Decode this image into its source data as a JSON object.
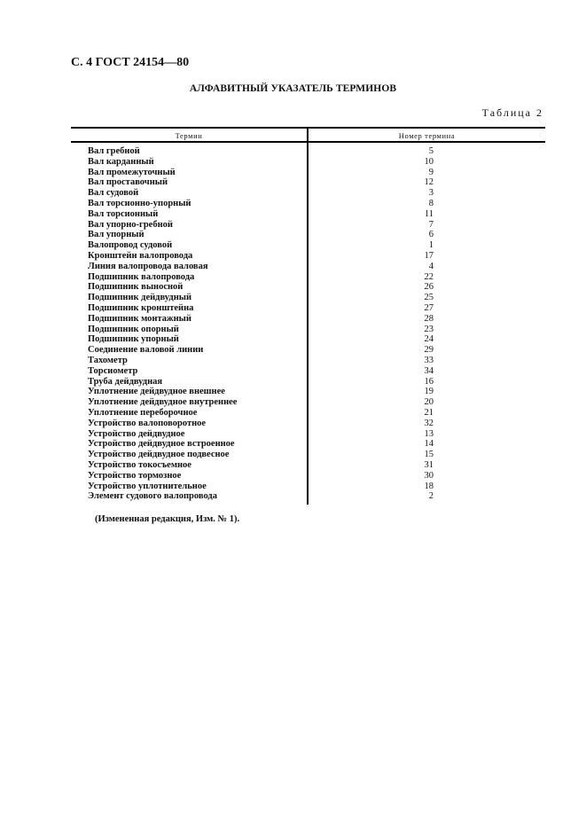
{
  "header": "С. 4 ГОСТ 24154—80",
  "title": "АЛФАВИТНЫЙ УКАЗАТЕЛЬ ТЕРМИНОВ",
  "table_label": "Таблица 2",
  "columns": [
    "Термин",
    "Номер термина"
  ],
  "rows": [
    [
      "Вал гребной",
      "5"
    ],
    [
      "Вал карданный",
      "10"
    ],
    [
      "Вал промежуточный",
      "9"
    ],
    [
      "Вал проставочный",
      "12"
    ],
    [
      "Вал судовой",
      "3"
    ],
    [
      "Вал торсионно-упорный",
      "8"
    ],
    [
      "Вал торсионный",
      "11"
    ],
    [
      "Вал упорно-гребной",
      "7"
    ],
    [
      "Вал упорный",
      "6"
    ],
    [
      "Валопровод судовой",
      "1"
    ],
    [
      "Кронштейн валопровода",
      "17"
    ],
    [
      "Линия валопровода валовая",
      "4"
    ],
    [
      "Подшипник валопровода",
      "22"
    ],
    [
      "Подшипник выносной",
      "26"
    ],
    [
      "Подшипник дейдвудный",
      "25"
    ],
    [
      "Подшипник кронштейна",
      "27"
    ],
    [
      "Подшипник монтажный",
      "28"
    ],
    [
      "Подшипник  опорный",
      "23"
    ],
    [
      "Подшипник упорный",
      "24"
    ],
    [
      "Соединение валовой линии",
      "29"
    ],
    [
      "Тахометр",
      "33"
    ],
    [
      "Торсиометр",
      "34"
    ],
    [
      "Труба дейдвудная",
      "16"
    ],
    [
      "Уплотнение дейдвудное внешнее",
      "19"
    ],
    [
      "Уплотнение дейдвудное внутреннее",
      "20"
    ],
    [
      "Уплотнение переборочное",
      "21"
    ],
    [
      "Устройство валоповоротное",
      "32"
    ],
    [
      "Устройство дейдвудное",
      "13"
    ],
    [
      "Устройство дейдвудное встроенное",
      "14"
    ],
    [
      "Устройство дейдвудное подвесное",
      "15"
    ],
    [
      "Устройство токосъемное",
      "31"
    ],
    [
      "Устройство тормозное",
      "30"
    ],
    [
      "Устройство уплотнительное",
      "18"
    ],
    [
      "Элемент судового валопровода",
      "2"
    ]
  ],
  "note": "(Измененная редакция, Изм. № 1)."
}
